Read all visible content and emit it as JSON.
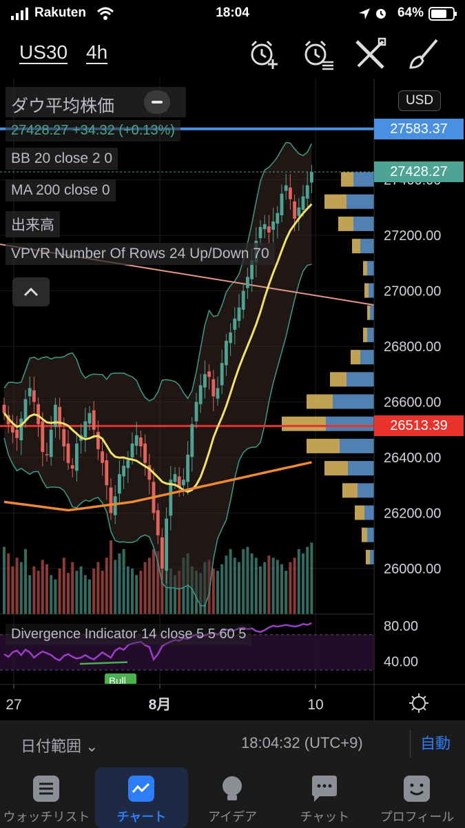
{
  "status_bar": {
    "carrier": "Rakuten",
    "time": "18:04",
    "battery": "64%"
  },
  "header": {
    "symbol": "US30",
    "interval": "4h",
    "icons": [
      "alarm-add-icon",
      "alarm-list-icon",
      "tools-icon",
      "brush-icon"
    ]
  },
  "legend": {
    "name": "ダウ平均株価",
    "quote": "27428.27 +34.32 (+0.13%)",
    "bb": "BB 20 close 2 0",
    "ma": "MA 200 close 0",
    "volume": "出来高",
    "vpvr": "VPVR Number Of Rows 24 Up/Down 70",
    "divergence": "Divergence Indicator 14 close 5 5 60 5",
    "bull_label": "Bull"
  },
  "currency": "USD",
  "price_tags": {
    "top": "27583.37",
    "last": "27428.27",
    "level": "26513.39"
  },
  "colors": {
    "up": "#4ea394",
    "down": "#e0645c",
    "bb": "#3f9c8d",
    "ma_fast": "#f2e26a",
    "ma_slow": "#f08a32",
    "top_line": "#4a90e2",
    "level_line": "#e8322b",
    "osc": "#9b3fc9",
    "accent": "#2d7df6"
  },
  "chart_data": {
    "type": "candlestick",
    "title": "ダウ平均株価",
    "y_ticks": [
      "27400.00",
      "27200.00",
      "27000.00",
      "26800.00",
      "26600.00",
      "26400.00",
      "26200.00",
      "26000.00"
    ],
    "x_ticks": [
      "27",
      "8月",
      "10"
    ],
    "y_range": [
      25950,
      27740
    ],
    "osc_ticks": [
      "80.00",
      "40.00"
    ],
    "osc_range": [
      20,
      90
    ],
    "series": [
      {
        "name": "price",
        "close": [
          26560,
          26520,
          26490,
          26470,
          26540,
          26610,
          26650,
          26600,
          26520,
          26420,
          26410,
          26500,
          26590,
          26510,
          26440,
          26380,
          26360,
          26450,
          26480,
          26530,
          26560,
          26500,
          26430,
          26380,
          26300,
          26200,
          26260,
          26340,
          26370,
          26390,
          26450,
          26480,
          26440,
          26380,
          26320,
          26200,
          26120,
          26000,
          26180,
          26320,
          26340,
          26290,
          26320,
          26410,
          26520,
          26600,
          26660,
          26700,
          26690,
          26620,
          26650,
          26740,
          26820,
          26850,
          26900,
          26940,
          27000,
          27050,
          27110,
          27180,
          27230,
          27240,
          27210,
          27250,
          27280,
          27350,
          27380,
          27330,
          27260,
          27300,
          27340,
          27380,
          27428.27
        ]
      },
      {
        "name": "volume",
        "values": [
          310,
          280,
          220,
          260,
          240,
          300,
          180,
          220,
          200,
          250,
          230,
          180,
          160,
          210,
          260,
          190,
          240,
          200,
          220,
          180,
          160,
          210,
          240,
          200,
          260,
          340,
          250,
          280,
          300,
          220,
          210,
          180,
          200,
          240,
          260,
          300,
          290,
          350,
          270,
          210,
          180,
          200,
          260,
          280,
          220,
          200,
          190,
          240,
          250,
          210,
          200,
          230,
          270,
          300,
          260,
          240,
          300,
          310,
          280,
          260,
          220,
          240,
          270,
          260,
          250,
          230,
          200,
          240,
          260,
          300,
          280,
          310,
          330
        ]
      },
      {
        "name": "divergence",
        "values": [
          48,
          45,
          50,
          52,
          47,
          53,
          50,
          44,
          48,
          51,
          49,
          47,
          43,
          41,
          46,
          48,
          45,
          43,
          44,
          47,
          44,
          42,
          46,
          50,
          47,
          44,
          52,
          55,
          53,
          58,
          60,
          61,
          62,
          58,
          56,
          42,
          48,
          57,
          60,
          62,
          64,
          63,
          66,
          65,
          68,
          70,
          68,
          69,
          71,
          72,
          70,
          74,
          76,
          74,
          75,
          77,
          78,
          76,
          77,
          74,
          73,
          75,
          78,
          80,
          79,
          80,
          81,
          80,
          79,
          80,
          82,
          81,
          83
        ]
      }
    ],
    "overlays": [
      "BB 20 close 2 0",
      "MA 200 close 0",
      "VPVR Number Of Rows 24 Up/Down 70"
    ]
  },
  "bottom": {
    "date_range": "日付範囲",
    "clock": "18:04:32 (UTC+9)",
    "auto": "自動"
  },
  "tabs": [
    {
      "label": "ウォッチリスト",
      "icon": "list-icon"
    },
    {
      "label": "チャート",
      "icon": "chart-icon",
      "active": true
    },
    {
      "label": "アイデア",
      "icon": "idea-icon"
    },
    {
      "label": "チャット",
      "icon": "chat-icon"
    },
    {
      "label": "プロフィール",
      "icon": "profile-icon"
    }
  ]
}
